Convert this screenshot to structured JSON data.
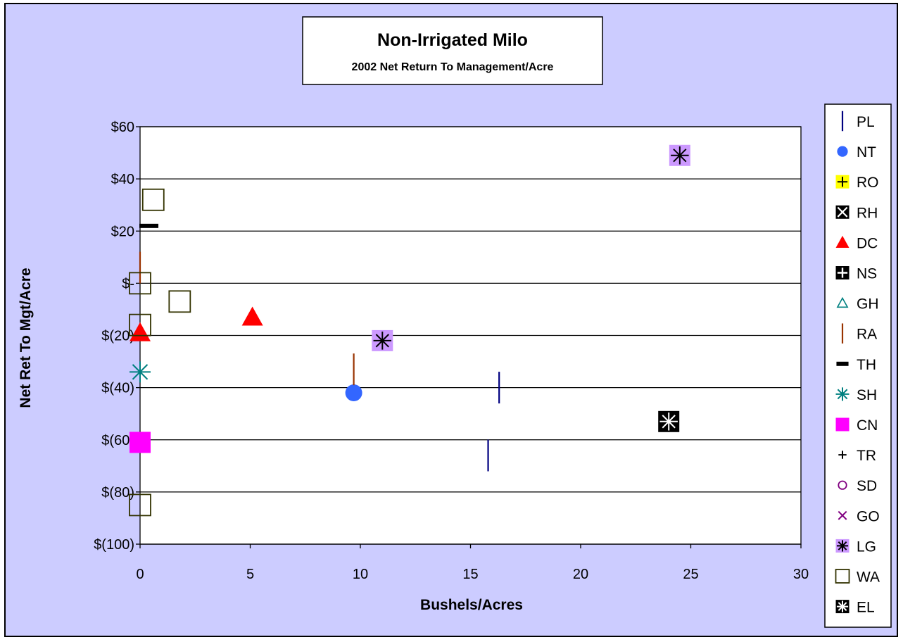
{
  "chart_data": {
    "type": "scatter",
    "title": "Non-Irrigated Milo",
    "subtitle": "2002 Net Return To Management/Acre",
    "xlabel": "Bushels/Acres",
    "ylabel": "Net Ret To Mgt/Acre",
    "xlim": [
      0,
      30
    ],
    "ylim": [
      -100,
      60
    ],
    "x_ticks": [
      0,
      5,
      10,
      15,
      20,
      25,
      30
    ],
    "x_tick_labels": [
      "0",
      "5",
      "10",
      "15",
      "20",
      "25",
      "30"
    ],
    "y_ticks": [
      60,
      40,
      20,
      0,
      -20,
      -40,
      -60,
      -80,
      -100
    ],
    "y_tick_labels": [
      "$60",
      "$40",
      "$20",
      "$-",
      "$(20)",
      "$(40)",
      "$(60)",
      "$(80)",
      "$(100)"
    ],
    "grid": "horizontal",
    "legend_position": "right",
    "colors": {
      "plot_area_bg": "#cccfff",
      "plot_bg": "#ffffff"
    },
    "series": [
      {
        "name": "PL",
        "marker": "vline",
        "color": "#000080",
        "points": [
          [
            16.3,
            -40
          ],
          [
            15.8,
            -66
          ]
        ]
      },
      {
        "name": "NT",
        "marker": "circle",
        "color": "#3366ff",
        "points": [
          [
            9.7,
            -42
          ]
        ]
      },
      {
        "name": "RO",
        "marker": "plus-box",
        "color": "#ffff00",
        "points": []
      },
      {
        "name": "RH",
        "marker": "x-box",
        "color": "#000000",
        "points": []
      },
      {
        "name": "DC",
        "marker": "triangle",
        "color": "#ff0000",
        "points": [
          [
            5.1,
            -13
          ],
          [
            0,
            -19
          ]
        ]
      },
      {
        "name": "NS",
        "marker": "plus-box-dark",
        "color": "#000000",
        "points": []
      },
      {
        "name": "GH",
        "marker": "triangle-open",
        "color": "#008080",
        "points": []
      },
      {
        "name": "RA",
        "marker": "vline",
        "color": "#993300",
        "points": [
          [
            0,
            6
          ],
          [
            9.7,
            -33
          ]
        ]
      },
      {
        "name": "TH",
        "marker": "dash",
        "color": "#000000",
        "points": [
          [
            0.4,
            22
          ]
        ]
      },
      {
        "name": "SH",
        "marker": "asterisk",
        "color": "#008080",
        "points": [
          [
            0,
            -34
          ]
        ]
      },
      {
        "name": "CN",
        "marker": "square",
        "color": "#ff00ff",
        "points": [
          [
            0,
            -61
          ]
        ]
      },
      {
        "name": "TR",
        "marker": "plus",
        "color": "#000000",
        "points": []
      },
      {
        "name": "SD",
        "marker": "circle-open",
        "color": "#800080",
        "points": []
      },
      {
        "name": "GO",
        "marker": "x",
        "color": "#800080",
        "points": []
      },
      {
        "name": "LG",
        "marker": "asterisk-box",
        "color": "#cc99ff",
        "points": [
          [
            24.5,
            49
          ],
          [
            11,
            -22
          ]
        ]
      },
      {
        "name": "WA",
        "marker": "square-open",
        "color": "#333300",
        "points": [
          [
            0.6,
            32
          ],
          [
            0,
            0
          ],
          [
            1.8,
            -7
          ],
          [
            0,
            -16
          ],
          [
            0,
            -85
          ]
        ]
      },
      {
        "name": "EL",
        "marker": "asterisk-box-dark",
        "color": "#000000",
        "points": [
          [
            24,
            -53
          ]
        ]
      }
    ]
  }
}
